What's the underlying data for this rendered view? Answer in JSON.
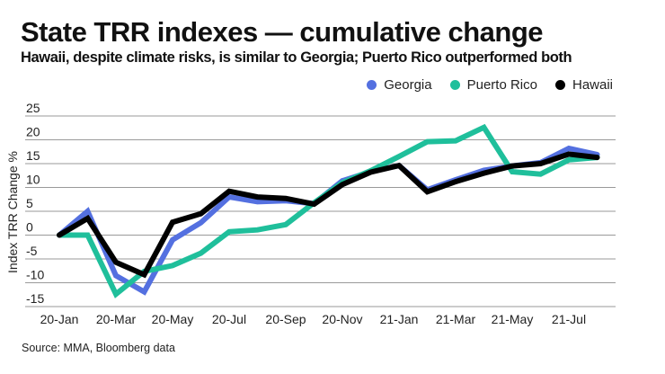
{
  "header": {
    "title": "State TRR indexes — cumulative change",
    "subtitle": "Hawaii, despite climate risks, is similar to Georgia; Puerto Rico outperformed both"
  },
  "legend": [
    {
      "label": "Georgia",
      "color": "#5470e0"
    },
    {
      "label": "Puerto Rico",
      "color": "#1fbf9b"
    },
    {
      "label": "Hawaii",
      "color": "#000000"
    }
  ],
  "source": "Source: MMA, Bloomberg data",
  "chart_data": {
    "type": "line",
    "title": "State TRR indexes — cumulative change",
    "subtitle": "Hawaii, despite climate risks, is similar to Georgia; Puerto Rico outperformed both",
    "xlabel": "",
    "ylabel": "Index TRR Change %",
    "ylim": [
      -15,
      25
    ],
    "yticks": [
      -15,
      -10,
      -5,
      0,
      5,
      10,
      15,
      20,
      25
    ],
    "ytick_labels": [
      "-15",
      "-10",
      "-5",
      "0",
      "5",
      "10",
      "15",
      "20",
      "25"
    ],
    "grid": "horizontal",
    "legend_position": "top-right",
    "x": [
      "20-Jan",
      "20-Feb",
      "20-Mar",
      "20-Apr",
      "20-May",
      "20-Jun",
      "20-Jul",
      "20-Aug",
      "20-Sep",
      "20-Oct",
      "20-Nov",
      "20-Dec",
      "21-Jan",
      "21-Feb",
      "21-Mar",
      "21-Apr",
      "21-May",
      "21-Jun",
      "21-Jul",
      "21-Aug"
    ],
    "xtick_labels": [
      "20-Jan",
      "20-Mar",
      "20-May",
      "20-Jul",
      "20-Sep",
      "20-Nov",
      "21-Jan",
      "21-Mar",
      "21-May",
      "21-Jul"
    ],
    "xtick_indices": [
      0,
      2,
      4,
      6,
      8,
      10,
      12,
      14,
      16,
      18
    ],
    "series": [
      {
        "name": "Georgia",
        "color": "#5470e0",
        "values": [
          0,
          5,
          -8.5,
          -11.9,
          -1,
          2.6,
          8,
          7,
          7.2,
          6.6,
          11.4,
          13.3,
          14.6,
          9.5,
          11.6,
          13.6,
          14.5,
          15.2,
          18.2,
          16.9
        ]
      },
      {
        "name": "Puerto Rico",
        "color": "#1fbf9b",
        "values": [
          0,
          0,
          -12.4,
          -7.6,
          -6.4,
          -3.8,
          0.7,
          1.1,
          2.2,
          6.8,
          11,
          13.5,
          16.5,
          19.6,
          19.8,
          22.6,
          13.3,
          12.8,
          15.8,
          16.3
        ]
      },
      {
        "name": "Hawaii",
        "color": "#000000",
        "values": [
          0,
          3.5,
          -5.7,
          -8.3,
          2.7,
          4.5,
          9.2,
          8,
          7.7,
          6.5,
          10.6,
          13.2,
          14.6,
          9.1,
          11.2,
          13,
          14.5,
          15,
          17,
          16.3
        ]
      }
    ]
  }
}
